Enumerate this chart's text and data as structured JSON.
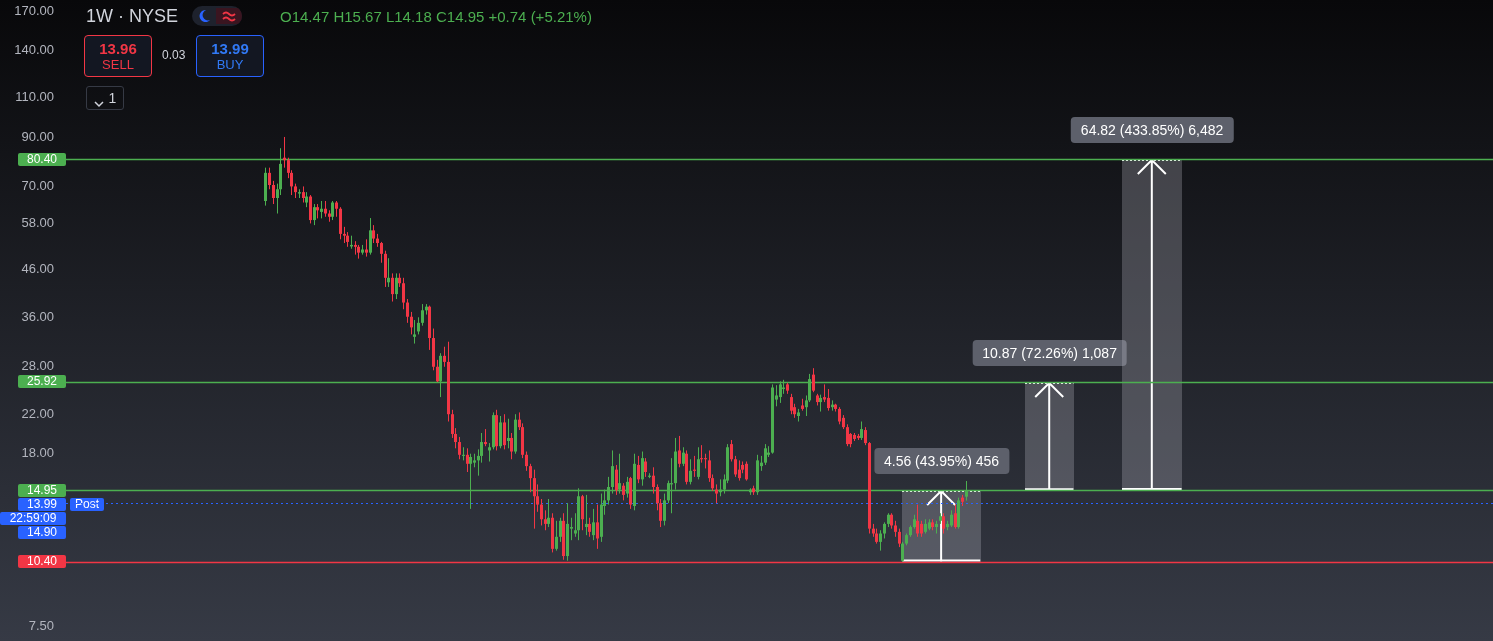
{
  "chart_data": {
    "type": "candlestick",
    "title": "1W · NYSE",
    "subtitle": "O14.47 H15.67 L14.18 C14.95 +0.74 (+5.21%)",
    "categories": [
      null,
      null,
      null,
      null,
      null,
      null,
      null,
      null,
      null,
      null,
      null,
      null,
      null,
      null,
      null,
      null,
      null,
      null,
      null,
      null,
      null,
      null,
      null,
      null,
      null,
      null,
      null,
      null,
      null,
      null,
      null,
      null,
      null,
      null,
      null,
      null,
      null,
      null,
      null,
      null,
      null,
      null,
      null,
      null,
      null,
      null,
      null,
      null,
      null,
      null,
      null,
      null,
      null,
      null,
      null,
      null,
      null,
      null,
      null,
      null,
      null,
      null,
      null,
      null,
      null,
      null,
      null,
      null,
      null,
      null,
      null,
      null,
      null,
      null,
      null,
      null,
      null,
      null,
      null,
      null,
      null,
      null,
      null,
      null,
      null,
      null,
      null,
      null,
      null,
      null,
      null,
      null,
      null,
      null,
      null,
      null,
      null,
      null,
      null,
      null,
      null,
      null,
      null,
      null,
      null,
      null,
      null,
      null,
      null,
      null,
      null,
      null,
      null,
      null,
      null,
      null,
      null,
      null,
      null,
      null,
      null,
      null,
      null,
      null,
      null,
      null,
      null,
      null,
      null,
      null,
      null,
      null,
      null,
      null,
      null,
      null,
      null,
      null,
      null,
      null,
      null,
      null,
      null,
      null,
      null,
      null,
      null,
      null,
      null,
      null,
      null,
      null,
      null,
      null,
      null,
      null,
      null,
      null,
      null,
      null,
      null,
      null,
      null,
      null,
      null,
      null,
      null,
      null,
      null,
      null,
      null,
      null,
      null,
      null,
      null,
      null,
      null,
      null,
      null,
      null,
      null,
      null,
      null,
      null,
      null,
      null,
      null,
      null,
      null,
      null,
      null,
      null,
      null,
      null,
      null,
      null,
      null,
      null,
      null,
      null,
      null,
      null,
      null,
      null,
      null,
      null,
      null,
      null,
      null,
      null,
      null,
      null,
      null,
      null,
      null,
      null,
      null,
      null,
      null,
      null,
      null,
      null,
      null,
      null,
      null,
      null,
      null,
      null,
      null,
      null,
      null,
      null,
      null,
      null,
      null,
      null,
      null,
      null,
      null,
      null,
      null,
      null,
      null,
      null,
      null,
      null,
      null,
      null,
      null,
      null,
      null,
      null,
      null,
      null,
      null,
      null,
      null,
      null,
      null,
      null,
      null,
      null,
      null,
      null,
      null,
      null,
      null,
      null,
      null,
      null,
      null,
      null,
      null,
      null,
      null,
      null,
      null,
      null,
      null,
      null,
      null,
      null,
      null,
      null,
      null,
      null,
      null,
      null,
      null,
      null,
      null,
      null,
      null,
      null,
      null,
      null,
      null,
      null,
      null,
      null,
      null,
      null,
      null,
      null,
      null,
      null,
      null,
      null,
      null,
      null,
      null,
      null,
      null,
      null,
      null,
      null,
      null,
      null,
      null,
      null,
      null,
      null,
      null,
      null,
      null,
      null,
      null,
      null,
      null,
      null,
      null,
      null,
      null,
      null,
      null,
      null,
      null,
      null,
      null,
      null,
      null,
      null,
      null,
      null,
      null,
      null,
      null,
      null,
      null,
      null,
      null,
      null,
      null,
      null,
      null,
      null,
      null,
      null,
      null,
      null,
      null,
      null,
      null,
      null,
      null,
      null,
      null,
      null,
      null,
      null,
      null,
      null,
      null,
      null,
      null,
      null,
      null,
      null,
      null,
      null,
      null,
      null,
      null
    ],
    "ohlc": [
      null,
      null,
      null,
      null,
      null,
      null,
      null,
      null,
      null,
      null,
      null,
      null,
      null,
      null,
      null,
      null,
      null,
      null,
      null,
      null,
      null,
      null,
      null,
      null,
      null,
      null,
      null,
      null,
      null,
      null,
      null,
      null,
      null,
      null,
      null,
      null,
      null,
      null,
      null,
      null,
      null,
      null,
      null,
      null,
      null,
      null,
      null,
      null,
      null,
      null,
      null,
      null,
      null,
      [
        65,
        77,
        63.5,
        75
      ],
      [
        75,
        77,
        69,
        70.5
      ],
      [
        70.5,
        72,
        64,
        66
      ],
      [
        66,
        71,
        61,
        69
      ],
      [
        69,
        85,
        67,
        78.5
      ],
      [
        81,
        90,
        77,
        80
      ],
      [
        80,
        81,
        73,
        75
      ],
      [
        75,
        76,
        67,
        70
      ],
      [
        70,
        71,
        66,
        68
      ],
      [
        67.5,
        69,
        66,
        68
      ],
      [
        68,
        70,
        64.5,
        66
      ],
      [
        64.5,
        68,
        63,
        66.5
      ],
      [
        66.5,
        67,
        58,
        59
      ],
      [
        59,
        64,
        57.5,
        63
      ],
      [
        63,
        64,
        59.5,
        62
      ],
      [
        61.5,
        65,
        59.5,
        62.5
      ],
      [
        62.5,
        65,
        60,
        61
      ],
      [
        61,
        62,
        58.5,
        60
      ],
      [
        60,
        65,
        59,
        64.5
      ],
      [
        64.5,
        65,
        60,
        62.5
      ],
      [
        62.5,
        63,
        53.5,
        55
      ],
      [
        55,
        57,
        52.5,
        54.5
      ],
      [
        54.5,
        55.5,
        51.5,
        52.8
      ],
      [
        51.6,
        54.5,
        51,
        52
      ],
      [
        52,
        53,
        49.5,
        51.5
      ],
      [
        51.5,
        52,
        48.5,
        50
      ],
      [
        50,
        52,
        49.5,
        50.8
      ],
      [
        50.8,
        53.5,
        49,
        50
      ],
      [
        50,
        59.6,
        49.5,
        56
      ],
      [
        56,
        57.5,
        52.5,
        53.7
      ],
      [
        53.7,
        55,
        51.5,
        52.5
      ],
      [
        52.5,
        52.8,
        47.5,
        49.7
      ],
      [
        49.7,
        50.5,
        42,
        44
      ],
      [
        43,
        48.6,
        42,
        44
      ],
      [
        44,
        45,
        39,
        40.5
      ],
      [
        40.5,
        45,
        39.5,
        44
      ],
      [
        44,
        45,
        42,
        42.8
      ],
      [
        42.8,
        44,
        37.5,
        38.8
      ],
      [
        38.8,
        39.5,
        35,
        36.1
      ],
      [
        36.1,
        37,
        33,
        34.2
      ],
      [
        32.6,
        35.5,
        31.5,
        33
      ],
      [
        33.5,
        36,
        33,
        35
      ],
      [
        35,
        38.5,
        34.5,
        37.3
      ],
      [
        37.3,
        38.5,
        36.5,
        38
      ],
      [
        38,
        38.2,
        30.5,
        32.4
      ],
      [
        32.4,
        34,
        27.5,
        28
      ],
      [
        28,
        29,
        25.9,
        26
      ],
      [
        26,
        30,
        24,
        29.6
      ],
      [
        29.6,
        31,
        28,
        28.7
      ],
      [
        28.7,
        31.8,
        21.2,
        22
      ],
      [
        22,
        22.5,
        19.5,
        19.9
      ],
      [
        19.9,
        20.5,
        18.5,
        19.1
      ],
      [
        19.1,
        19.6,
        17.5,
        17.9
      ],
      [
        17.8,
        18.6,
        17.4,
        17.9
      ],
      [
        17.9,
        18.5,
        16.4,
        17.1
      ],
      [
        17.1,
        18,
        13.6,
        17.7
      ],
      [
        17.2,
        18,
        16.8,
        17.4
      ],
      [
        17.4,
        18.4,
        16.1,
        17.8
      ],
      [
        17.8,
        20,
        17.2,
        19.1
      ],
      [
        19.1,
        20.4,
        18.7,
        18.9
      ],
      [
        18.3,
        19,
        17.3,
        18.6
      ],
      [
        18.6,
        22.2,
        18.4,
        21.9
      ],
      [
        21.9,
        22.5,
        18.3,
        18.7
      ],
      [
        18.7,
        21.8,
        18.5,
        21.1
      ],
      [
        21.1,
        22,
        18.4,
        18.8
      ],
      [
        19.2,
        21.5,
        18.5,
        19.5
      ],
      [
        19.5,
        20,
        17.5,
        18.2
      ],
      [
        18.2,
        22,
        18,
        21.4
      ],
      [
        21.4,
        22.2,
        20.3,
        20.6
      ],
      [
        20.6,
        21,
        17.6,
        17.9
      ],
      [
        17.9,
        18.2,
        16.5,
        16.9
      ],
      [
        16.9,
        17.1,
        14.8,
        15.9
      ],
      [
        15.9,
        16.6,
        12.3,
        14.5
      ],
      [
        14.5,
        15.4,
        13.4,
        13.9
      ],
      [
        13.9,
        14.3,
        12.5,
        12.9
      ],
      [
        12.9,
        13.5,
        12.2,
        12.6
      ],
      [
        12.6,
        14.3,
        12.4,
        13
      ],
      [
        13,
        13.3,
        10.9,
        11.1
      ],
      [
        11.1,
        12.8,
        11,
        11.8
      ],
      [
        11.8,
        13,
        11.5,
        12.8
      ],
      [
        12.8,
        13.3,
        10.5,
        10.7
      ],
      [
        10.7,
        14,
        10.45,
        12.6
      ],
      [
        12.3,
        13,
        11.6,
        12.4
      ],
      [
        12,
        13.3,
        11.8,
        12.2
      ],
      [
        12.2,
        15.1,
        11.6,
        14.5
      ],
      [
        14.5,
        14.6,
        12.2,
        12.9
      ],
      [
        12.4,
        14.6,
        11.9,
        12.6
      ],
      [
        12.6,
        13,
        11.8,
        12.1
      ],
      [
        11.9,
        13.6,
        11.6,
        12.7
      ],
      [
        12.7,
        13.9,
        11.1,
        11.7
      ],
      [
        11.8,
        14.7,
        11.5,
        13.9
      ],
      [
        13.8,
        15,
        13.2,
        14.2
      ],
      [
        14.2,
        16,
        13.9,
        15.2
      ],
      [
        15.2,
        18.3,
        14.7,
        16.9
      ],
      [
        16.6,
        17,
        14.6,
        14.95
      ],
      [
        15,
        18,
        14.7,
        15.5
      ],
      [
        15.3,
        15.5,
        14.2,
        14.6
      ],
      [
        14.7,
        16,
        14.4,
        15.6
      ],
      [
        15.9,
        16,
        13.6,
        13.9
      ],
      [
        13.8,
        18,
        13.5,
        17.1
      ],
      [
        17,
        17.8,
        15.5,
        15.8
      ],
      [
        15.8,
        18.2,
        15.3,
        17.6
      ],
      [
        17.3,
        17.6,
        16,
        16.4
      ],
      [
        16,
        16.3,
        15.9,
        16.1
      ],
      [
        16.1,
        16.8,
        14.7,
        15.2
      ],
      [
        15.2,
        15.4,
        13.5,
        14
      ],
      [
        14,
        14.3,
        12.4,
        12.8
      ],
      [
        12.8,
        14.7,
        12.5,
        14.2
      ],
      [
        14.2,
        15.7,
        14,
        15.5
      ],
      [
        15.4,
        17.6,
        13.3,
        15.5
      ],
      [
        15.5,
        19.5,
        15,
        18.2
      ],
      [
        18.3,
        19.7,
        16.8,
        17.1
      ],
      [
        17.1,
        18.6,
        16.9,
        18.1
      ],
      [
        18,
        18.3,
        15.4,
        15.6
      ],
      [
        15.6,
        17.5,
        15.4,
        16.5
      ],
      [
        16.6,
        17.8,
        16,
        16.5
      ],
      [
        16,
        18.6,
        15.8,
        17.5
      ],
      [
        17.6,
        18.8,
        17.2,
        17.5
      ],
      [
        17.6,
        18,
        16.7,
        17.5
      ],
      [
        17.4,
        18.3,
        15.6,
        15.9
      ],
      [
        15.9,
        16.2,
        14.9,
        15.1
      ],
      [
        15,
        15.4,
        14,
        14.7
      ],
      [
        14.8,
        15.8,
        14.5,
        15
      ],
      [
        15,
        16.2,
        14.7,
        15.8
      ],
      [
        15.7,
        18.9,
        15.5,
        18.6
      ],
      [
        18.9,
        19.3,
        17.3,
        17.5
      ],
      [
        17.5,
        17.8,
        16,
        16.2
      ],
      [
        16.6,
        17.4,
        15.7,
        15.9
      ],
      [
        17,
        17.3,
        16.3,
        16.6
      ],
      [
        17.1,
        17.3,
        15.7,
        15.8
      ],
      [
        14.8,
        15.1,
        14.6,
        15
      ],
      [
        15.1,
        15.3,
        14.6,
        14.8
      ],
      [
        14.8,
        17.9,
        14.6,
        17.4
      ],
      [
        16.9,
        17.8,
        16.5,
        17.2
      ],
      [
        17.2,
        18.9,
        17,
        18.5
      ],
      [
        17.9,
        18.7,
        17.7,
        18.1
      ],
      [
        18.1,
        25.6,
        18,
        25.2
      ],
      [
        23.7,
        25.5,
        22.9,
        24.2
      ],
      [
        24,
        26,
        23.3,
        25.6
      ],
      [
        25,
        26.2,
        24.4,
        25.2
      ],
      [
        25.6,
        25.8,
        24.4,
        24.8
      ],
      [
        24,
        24.4,
        22,
        22.4
      ],
      [
        22.8,
        23.2,
        21.6,
        22
      ],
      [
        21.8,
        22.6,
        21.2,
        22.2
      ],
      [
        23,
        23.8,
        22.4,
        22.6
      ],
      [
        22.8,
        24.2,
        21.8,
        23.6
      ],
      [
        23.6,
        27,
        23.4,
        26.3
      ],
      [
        26.9,
        27.8,
        24.6,
        24.8
      ],
      [
        24.2,
        24.4,
        23,
        23.4
      ],
      [
        23.4,
        24.3,
        22.3,
        23.9
      ],
      [
        24,
        25.6,
        23.4,
        23.7
      ],
      [
        23.9,
        25,
        22.4,
        22.7
      ],
      [
        22.8,
        23.6,
        22.4,
        23.1
      ],
      [
        23.1,
        23.2,
        22.3,
        22.6
      ],
      [
        22.6,
        22.8,
        20.9,
        21.2
      ],
      [
        21.6,
        21.9,
        20.4,
        20.6
      ],
      [
        20.6,
        20.9,
        18.7,
        18.9
      ],
      [
        19.9,
        20,
        18.6,
        18.9
      ],
      [
        19.8,
        20,
        19.2,
        19.4
      ],
      [
        19.7,
        19.9,
        19.3,
        19.5
      ],
      [
        19.5,
        21.2,
        19.3,
        20.4
      ],
      [
        20.3,
        20.6,
        18.8,
        19
      ],
      [
        19,
        19.1,
        12,
        12.3
      ],
      [
        12.3,
        12.6,
        11.8,
        12
      ],
      [
        12,
        12.3,
        11.4,
        11.5
      ],
      [
        11.5,
        12.2,
        11,
        12
      ],
      [
        12,
        12.7,
        11.7,
        12.6
      ],
      [
        12.6,
        13.3,
        12.4,
        13.2
      ],
      [
        13.2,
        13.3,
        12.3,
        12.5
      ],
      [
        12.5,
        12.8,
        11.8,
        12.1
      ],
      [
        12.1,
        12.3,
        11.2,
        11.4
      ],
      [
        10.45,
        11.5,
        10.4,
        11.4
      ],
      [
        11.4,
        12,
        11.3,
        11.9
      ],
      [
        11.9,
        12.5,
        11.8,
        12.4
      ],
      [
        12.4,
        13.2,
        12.3,
        12.9
      ],
      [
        12.8,
        13.9,
        11.8,
        12
      ],
      [
        12.6,
        12.8,
        11.8,
        12
      ],
      [
        12.1,
        12.9,
        12,
        12.6
      ],
      [
        12.3,
        12.9,
        12.2,
        12.7
      ],
      [
        12.7,
        12.9,
        12.2,
        12.4
      ],
      [
        12.4,
        12.8,
        12,
        12.6
      ],
      [
        12.8,
        13.3,
        12.6,
        13.1
      ],
      [
        13.1,
        13.3,
        12,
        12.3
      ],
      [
        12.4,
        12.8,
        12.2,
        12.6
      ],
      [
        12.5,
        13.5,
        12.4,
        13.2
      ],
      [
        13.3,
        13.9,
        12.3,
        12.4
      ],
      [
        12.4,
        14.4,
        12.3,
        14.2
      ],
      [
        14.4,
        14.6,
        13.8,
        14.1
      ],
      [
        14.47,
        15.67,
        14.18,
        14.95
      ],
      null,
      null,
      null,
      null,
      null,
      null,
      null,
      null,
      null,
      null,
      null,
      null,
      null,
      null,
      null,
      null,
      null,
      null,
      null,
      null,
      null,
      null,
      null,
      null,
      null,
      null,
      null,
      null,
      null,
      null,
      null,
      null,
      null,
      null,
      null,
      null,
      null,
      null,
      null,
      null,
      null,
      null,
      null,
      null,
      null,
      null,
      null,
      null,
      null,
      null,
      null,
      null,
      null,
      null,
      null,
      null,
      null,
      null,
      null,
      null,
      null,
      null,
      null,
      null,
      null,
      null,
      null,
      null,
      null,
      null,
      null,
      null,
      null,
      null,
      null,
      null,
      null,
      null,
      null,
      null,
      null,
      null,
      null,
      null,
      null,
      null,
      null,
      null,
      null,
      null,
      null,
      null,
      null,
      null,
      null,
      null,
      null,
      null,
      null,
      null,
      null,
      null,
      null,
      null,
      null,
      null,
      null,
      null,
      null,
      null,
      null,
      null,
      null,
      null,
      null,
      null,
      null,
      null,
      null,
      null,
      null,
      null,
      null,
      null,
      null,
      null,
      null,
      null,
      null,
      null,
      null,
      null,
      null,
      null,
      null,
      null,
      null,
      null,
      null,
      null,
      null
    ],
    "colors": [
      null,
      null,
      null,
      null,
      null,
      null,
      null,
      null,
      null,
      null,
      null,
      null,
      null,
      null,
      null,
      null,
      null,
      null,
      null,
      null,
      null,
      null,
      null,
      null,
      null,
      null,
      null,
      null,
      null,
      null,
      null,
      null,
      null,
      null,
      null,
      null,
      null,
      null,
      null,
      null,
      null,
      null,
      null,
      null,
      null,
      null,
      null,
      null,
      null,
      null,
      null,
      null,
      null,
      "#4caf50",
      "#f23645",
      "#f23645",
      "#4caf50",
      "#4caf50",
      "#f23645",
      "#f23645",
      "#f23645",
      "#f23645",
      "#4caf50",
      "#f23645",
      "#4caf50",
      "#f23645",
      "#4caf50",
      "#f23645",
      "#4caf50",
      "#f23645",
      "#f23645",
      "#4caf50",
      "#f23645",
      "#f23645",
      "#f23645",
      "#f23645",
      "#4caf50",
      "#f23645",
      "#f23645",
      "#4caf50",
      "#f23645",
      "#4caf50",
      "#f23645",
      "#f23645",
      "#f23645",
      "#f23645",
      "#4caf50",
      "#f23645",
      "#4caf50",
      "#f23645",
      "#f23645",
      "#f23645",
      "#f23645",
      "#4caf50",
      "#4caf50",
      "#4caf50",
      "#4caf50",
      "#f23645",
      "#f23645",
      "#f23645",
      "#4caf50",
      "#f23645",
      "#f23645",
      "#f23645",
      "#f23645",
      "#f23645",
      "#4caf50",
      "#f23645",
      "#4caf50",
      "#4caf50",
      "#4caf50",
      "#4caf50",
      "#f23645",
      "#4caf50",
      "#4caf50",
      "#f23645",
      "#4caf50",
      "#f23645",
      "#4caf50",
      "#f23645",
      "#4caf50",
      "#f23645",
      "#f23645",
      "#f23645",
      "#f23645",
      "#f23645",
      "#f23645",
      "#f23645",
      "#f23645",
      "#4caf50",
      "#f23645",
      "#4caf50",
      "#4caf50",
      "#f23645",
      "#4caf50",
      "#4caf50",
      "#4caf50",
      "#4caf50",
      "#f23645",
      "#4caf50",
      "#f23645",
      "#4caf50",
      "#f23645",
      "#4caf50",
      "#4caf50",
      "#4caf50",
      "#4caf50",
      "#f23645",
      "#4caf50",
      "#f23645",
      "#4caf50",
      "#f23645",
      "#4caf50",
      "#f23645",
      "#4caf50",
      "#f23645",
      "#4caf50",
      "#f23645",
      "#f23645",
      "#f23645",
      "#4caf50",
      "#4caf50",
      "#4caf50",
      "#4caf50",
      "#f23645",
      "#4caf50",
      "#f23645",
      "#4caf50",
      "#f23645",
      "#4caf50",
      "#f23645",
      "#f23645",
      "#f23645",
      "#f23645",
      "#f23645",
      "#4caf50",
      "#4caf50",
      "#4caf50",
      "#f23645",
      "#f23645",
      "#f23645",
      "#f23645",
      "#f23645",
      "#4caf50",
      "#f23645",
      "#4caf50",
      "#4caf50",
      "#4caf50",
      "#4caf50",
      "#4caf50",
      "#4caf50",
      "#4caf50",
      "#4caf50",
      "#f23645",
      "#f23645",
      "#f23645",
      "#4caf50",
      "#f23645",
      "#4caf50",
      "#4caf50",
      "#f23645",
      "#f23645",
      "#4caf50",
      "#f23645",
      "#f23645",
      "#4caf50",
      "#f23645",
      "#f23645",
      "#f23645",
      "#f23645",
      "#f23645",
      "#f23645",
      "#f23645",
      "#4caf50",
      "#f23645",
      "#f23645",
      "#f23645",
      "#f23645",
      "#4caf50",
      "#4caf50",
      "#4caf50",
      "#f23645",
      "#f23645",
      "#f23645",
      "#4caf50",
      "#4caf50",
      "#4caf50",
      "#4caf50",
      "#f23645",
      "#f23645",
      "#4caf50",
      "#4caf50",
      "#f23645",
      "#4caf50",
      "#4caf50",
      "#f23645",
      "#4caf50",
      "#4caf50",
      "#f23645",
      "#4caf50",
      "#f23645",
      "#4caf50",
      null,
      null,
      null,
      null,
      null,
      null,
      null,
      null,
      null,
      null,
      null,
      null,
      null,
      null,
      null,
      null,
      null,
      null,
      null,
      null,
      null,
      null,
      null,
      null,
      null,
      null,
      null,
      null,
      null,
      null,
      null,
      null,
      null,
      null,
      null,
      null,
      null,
      null,
      null,
      null,
      null,
      null,
      null,
      null,
      null,
      null,
      null,
      null,
      null,
      null,
      null,
      null,
      null,
      null,
      null,
      null,
      null,
      null,
      null,
      null,
      null,
      null,
      null,
      null,
      null,
      null,
      null,
      null,
      null,
      null,
      null,
      null,
      null,
      null,
      null,
      null,
      null,
      null,
      null,
      null,
      null,
      null,
      null,
      null,
      null,
      null,
      null,
      null,
      null,
      null,
      null,
      null,
      null,
      null,
      null,
      null,
      null,
      null,
      null,
      null,
      null,
      null,
      null,
      null,
      null,
      null,
      null,
      null,
      null,
      null,
      null,
      null,
      null,
      null,
      null,
      null,
      null,
      null,
      null,
      null,
      null,
      null,
      null,
      null,
      null,
      null,
      null,
      null,
      null,
      null,
      null,
      null,
      null,
      null,
      null,
      null,
      null,
      null,
      null,
      null,
      null
    ],
    "log": "y",
    "ylim": [
      7.5,
      170
    ],
    "yticks": [
      {
        "value": 7.5,
        "label": "7.50"
      },
      {
        "value": 18,
        "label": "18.00"
      },
      {
        "value": 22,
        "label": "22.00"
      },
      {
        "value": 28,
        "label": "28.00"
      },
      {
        "value": 36,
        "label": "36.00"
      },
      {
        "value": 46,
        "label": "46.00"
      },
      {
        "value": 58,
        "label": "58.00"
      },
      {
        "value": 70,
        "label": "70.00"
      },
      {
        "value": 90,
        "label": "90.00"
      },
      {
        "value": 110,
        "label": "110.00"
      },
      {
        "value": 140,
        "label": "140.00"
      },
      {
        "value": 170,
        "label": "170.00"
      }
    ],
    "ref_lines": [
      {
        "axis": "y",
        "value": 80.4,
        "label": "80.40",
        "color": "#4caf50"
      },
      {
        "axis": "y",
        "value": 25.92,
        "label": "25.92",
        "color": "#4caf50"
      },
      {
        "axis": "y",
        "value": 14.95,
        "label": "14.95",
        "color": "#4caf50"
      },
      {
        "axis": "y",
        "value": 13.99,
        "label": "13.99",
        "color": "#2962ff",
        "line_style": "dotted"
      },
      {
        "axis": "y",
        "value": 10.4,
        "label": "10.40",
        "color": "#f23645"
      }
    ],
    "annotations": [
      "13.96",
      "SELL",
      "0.03",
      "13.99",
      "BUY",
      "1",
      "22:59:09",
      "14.90",
      "Post",
      {
        "text": "4.56 (43.95%) 456",
        "y": 14.95
      },
      {
        "text": "10.87 (72.26%) 1,087",
        "y": 25.92
      },
      {
        "text": "64.82 (433.85%) 6,482",
        "y": 80.4
      }
    ]
  }
}
